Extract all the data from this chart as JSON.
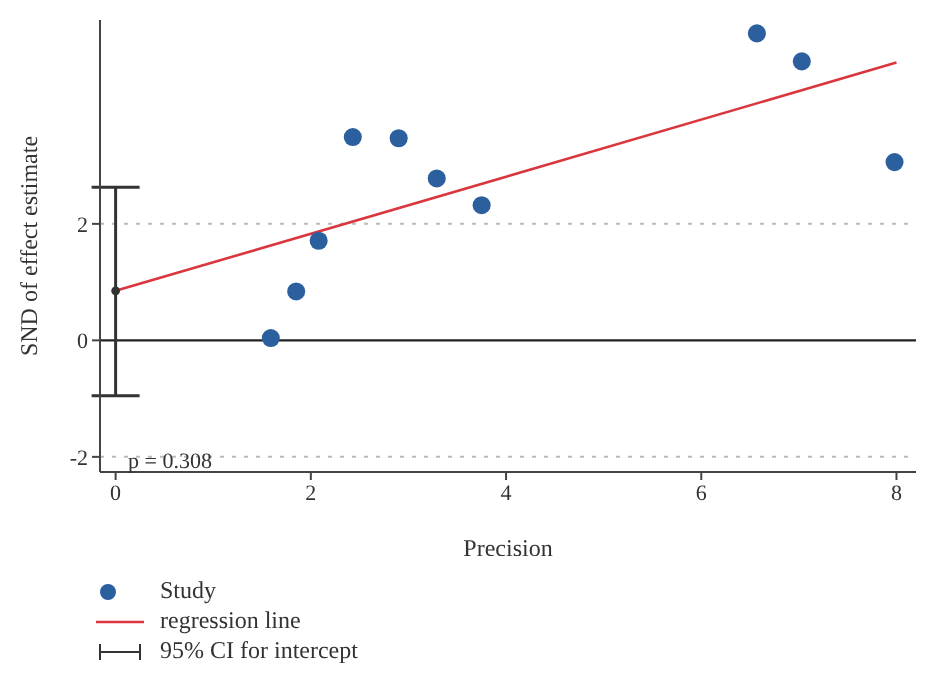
{
  "chart_data": {
    "type": "scatter",
    "xlabel": "Precision",
    "ylabel": "SND of effect estimate",
    "xlim": [
      -0.16,
      8.2
    ],
    "xticks": [
      0,
      2,
      4,
      6,
      8
    ],
    "ylim": [
      -2.26,
      5.5
    ],
    "yticks": [
      -2,
      0,
      2
    ],
    "grid": false,
    "legend": "bottom",
    "marker": "circle",
    "series": [
      {
        "name": "Study",
        "type": "scatter",
        "color": "#2b5f9e",
        "x": [
          1.59,
          1.85,
          2.08,
          2.43,
          2.9,
          3.29,
          3.75,
          6.57,
          7.03,
          7.98
        ],
        "values": [
          0.04,
          0.84,
          1.71,
          3.49,
          3.47,
          2.78,
          2.32,
          5.27,
          4.79,
          3.06
        ]
      },
      {
        "name": "regression line",
        "type": "line",
        "color": "#d9363e",
        "marker": "none",
        "line_style": "solid",
        "x": [
          0,
          8
        ],
        "values": [
          0.85,
          4.77
        ]
      },
      {
        "name": "95% CI for intercept",
        "type": "scatter",
        "color": "#333333",
        "x": [
          0
        ],
        "values": [
          0.85
        ],
        "errors": [
          [
            -0.95,
            2.63
          ]
        ]
      }
    ],
    "ref_lines": [
      {
        "axis": "y",
        "value": 0,
        "color": "#222222",
        "line_style": "solid"
      },
      {
        "axis": "y",
        "value": 2,
        "color": "#bbbbbb",
        "line_style": "dotted"
      },
      {
        "axis": "y",
        "value": -2,
        "color": "#bbbbbb",
        "line_style": "dotted"
      }
    ],
    "annotations": [
      "p = 0.308"
    ]
  }
}
